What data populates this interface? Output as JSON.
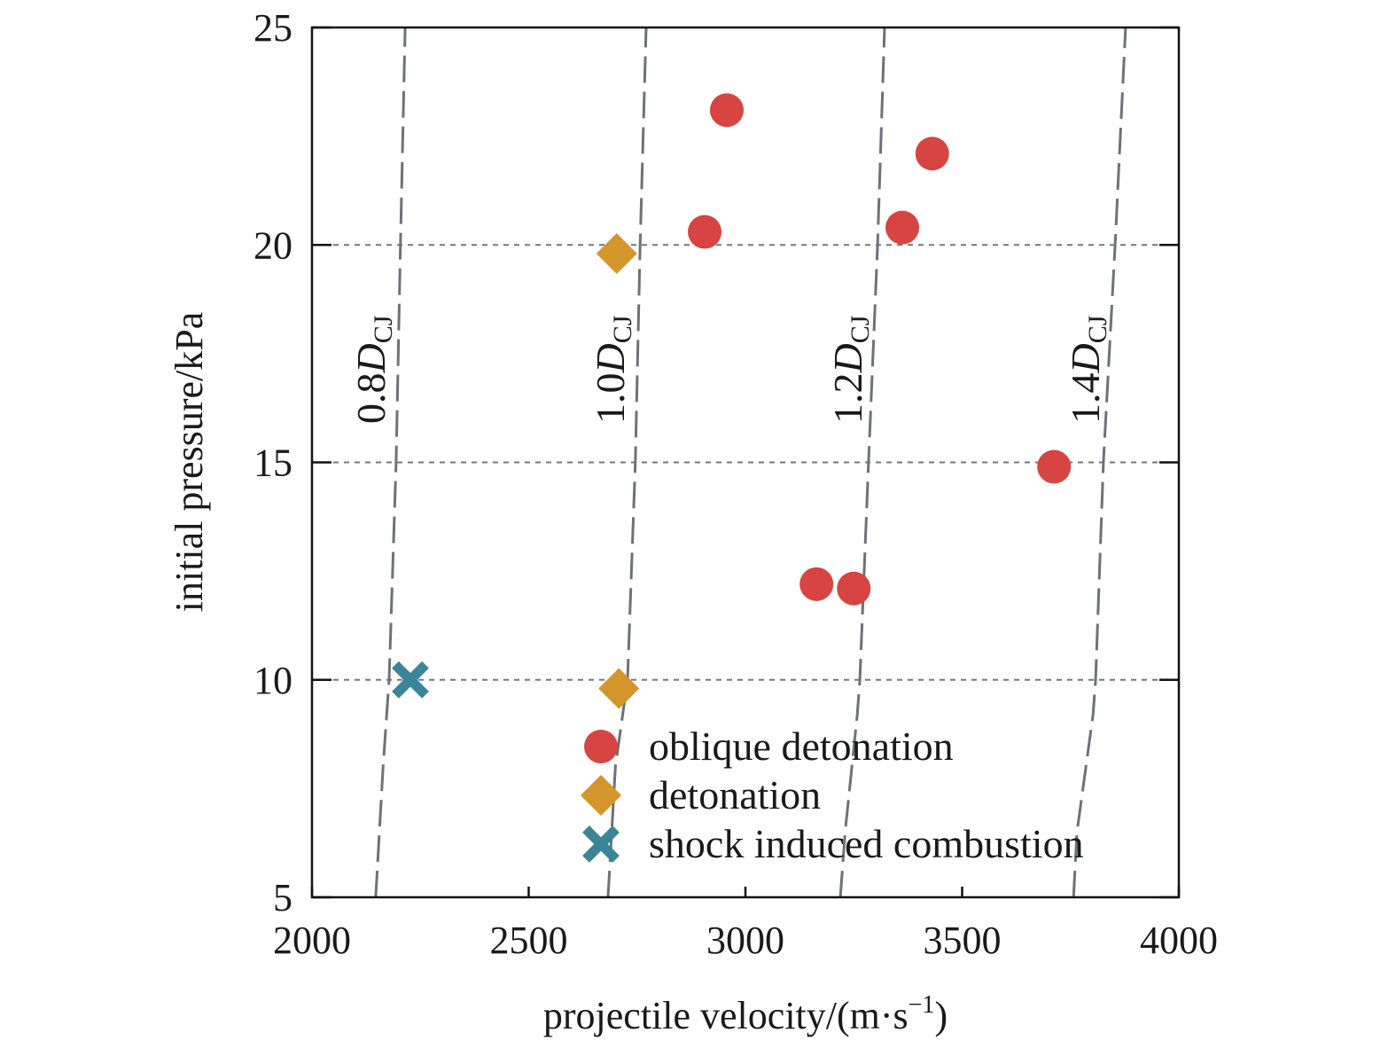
{
  "chart_data": {
    "type": "scatter",
    "xlabel": "projectile velocity/(m·s",
    "xlabel_sup": "−1",
    "xlabel_close": ")",
    "ylabel": "initial pressure/kPa",
    "xlim": [
      2000,
      4000
    ],
    "ylim": [
      5,
      25
    ],
    "xticks": [
      2000,
      2500,
      3000,
      3500,
      4000
    ],
    "yticks": [
      5,
      10,
      15,
      20,
      25
    ],
    "grid": {
      "horizontal_dashed_at": [
        10,
        15,
        20
      ]
    },
    "legend_position": "bottom-right",
    "series": [
      {
        "name": "oblique detonation",
        "marker": "circle",
        "color": "#d64541",
        "points": [
          [
            2957,
            23.1
          ],
          [
            3431,
            22.1
          ],
          [
            2906,
            20.3
          ],
          [
            3362,
            20.4
          ],
          [
            3712,
            14.9
          ],
          [
            3164,
            12.2
          ],
          [
            3250,
            12.1
          ]
        ]
      },
      {
        "name": "detonation",
        "marker": "diamond",
        "color": "#d4952a",
        "points": [
          [
            2703,
            19.8
          ],
          [
            2708,
            9.8
          ]
        ]
      },
      {
        "name": "shock induced combustion",
        "marker": "cross",
        "color": "#3a8597",
        "points": [
          [
            2227,
            10.0
          ]
        ]
      }
    ],
    "reference_curves": [
      {
        "label": "0.8",
        "sym": "D",
        "sub": "CJ",
        "color": "#6e7178",
        "points": [
          [
            2147,
            5
          ],
          [
            2164,
            8
          ],
          [
            2178,
            10
          ],
          [
            2194,
            15
          ],
          [
            2204,
            20
          ],
          [
            2215,
            25
          ]
        ]
      },
      {
        "label": "1.0",
        "sym": "D",
        "sub": "CJ",
        "color": "#6e7178",
        "points": [
          [
            2683,
            5
          ],
          [
            2700,
            8
          ],
          [
            2728,
            10
          ],
          [
            2746,
            15
          ],
          [
            2757,
            20
          ],
          [
            2771,
            25
          ]
        ]
      },
      {
        "label": "1.2",
        "sym": "D",
        "sub": "CJ",
        "color": "#6e7178",
        "points": [
          [
            3219,
            5
          ],
          [
            3230,
            6.5
          ],
          [
            3258,
            9.2
          ],
          [
            3264,
            10
          ],
          [
            3284,
            15
          ],
          [
            3305,
            20
          ],
          [
            3321,
            25
          ]
        ]
      },
      {
        "label": "1.4",
        "sym": "D",
        "sub": "CJ",
        "color": "#6e7178",
        "points": [
          [
            3757,
            5
          ],
          [
            3765,
            6.5
          ],
          [
            3802,
            9.2
          ],
          [
            3808,
            10
          ],
          [
            3826,
            15
          ],
          [
            3853,
            20
          ],
          [
            3877,
            25
          ]
        ]
      }
    ]
  }
}
